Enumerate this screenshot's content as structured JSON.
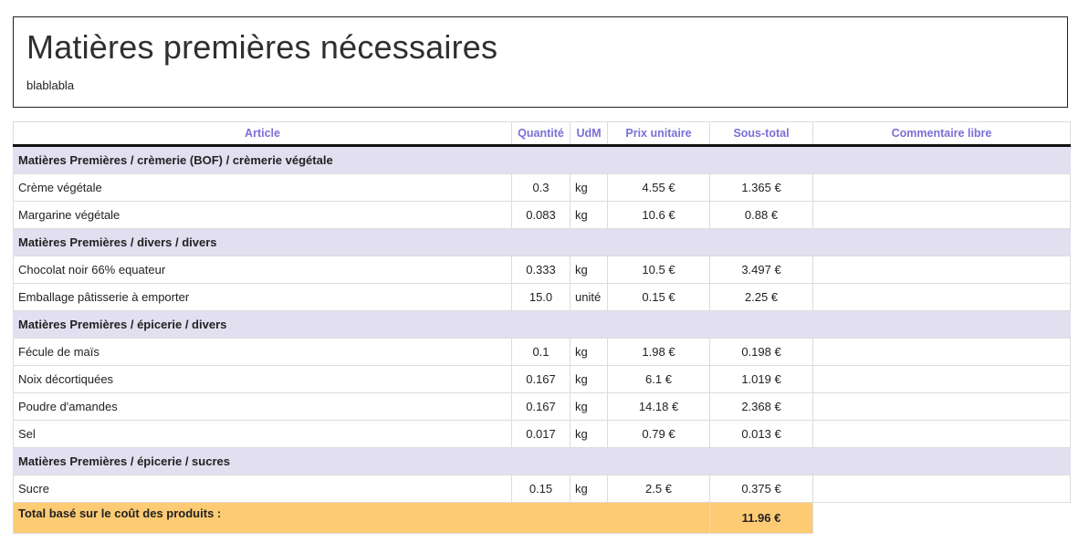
{
  "header": {
    "title": "Matières premières nécessaires",
    "subtitle": "blablabla"
  },
  "table": {
    "columns": {
      "article": "Article",
      "quantite": "Quantité",
      "udm": "UdM",
      "prix": "Prix unitaire",
      "sous_total": "Sous-total",
      "commentaire": "Commentaire libre"
    },
    "groups": [
      {
        "category": "Matières Premières / crèmerie (BOF) / crèmerie végétale",
        "rows": [
          {
            "article": "Crème végétale",
            "quantite": "0.3",
            "udm": "kg",
            "prix": "4.55 €",
            "sous_total": "1.365 €",
            "commentaire": ""
          },
          {
            "article": "Margarine végétale",
            "quantite": "0.083",
            "udm": "kg",
            "prix": "10.6 €",
            "sous_total": "0.88 €",
            "commentaire": ""
          }
        ]
      },
      {
        "category": "Matières Premières / divers / divers",
        "rows": [
          {
            "article": "Chocolat noir 66% equateur",
            "quantite": "0.333",
            "udm": "kg",
            "prix": "10.5 €",
            "sous_total": "3.497 €",
            "commentaire": ""
          },
          {
            "article": "Emballage pâtisserie à emporter",
            "quantite": "15.0",
            "udm": "unité",
            "prix": "0.15 €",
            "sous_total": "2.25 €",
            "commentaire": ""
          }
        ]
      },
      {
        "category": "Matières Premières / épicerie / divers",
        "rows": [
          {
            "article": "Fécule de maïs",
            "quantite": "0.1",
            "udm": "kg",
            "prix": "1.98 €",
            "sous_total": "0.198 €",
            "commentaire": ""
          },
          {
            "article": "Noix décortiquées",
            "quantite": "0.167",
            "udm": "kg",
            "prix": "6.1 €",
            "sous_total": "1.019 €",
            "commentaire": ""
          },
          {
            "article": "Poudre d'amandes",
            "quantite": "0.167",
            "udm": "kg",
            "prix": "14.18 €",
            "sous_total": "2.368 €",
            "commentaire": ""
          },
          {
            "article": "Sel",
            "quantite": "0.017",
            "udm": "kg",
            "prix": "0.79 €",
            "sous_total": "0.013 €",
            "commentaire": ""
          }
        ]
      },
      {
        "category": "Matières Premières / épicerie / sucres",
        "rows": [
          {
            "article": "Sucre",
            "quantite": "0.15",
            "udm": "kg",
            "prix": "2.5 €",
            "sous_total": "0.375 €",
            "commentaire": ""
          }
        ]
      }
    ],
    "total": {
      "label": "Total basé sur le coût des produits :",
      "value": "11.96 €"
    }
  },
  "colors": {
    "header_text": "#7b6fd6",
    "category_bg": "#e2dff0",
    "total_bg": "#fdcb73"
  }
}
